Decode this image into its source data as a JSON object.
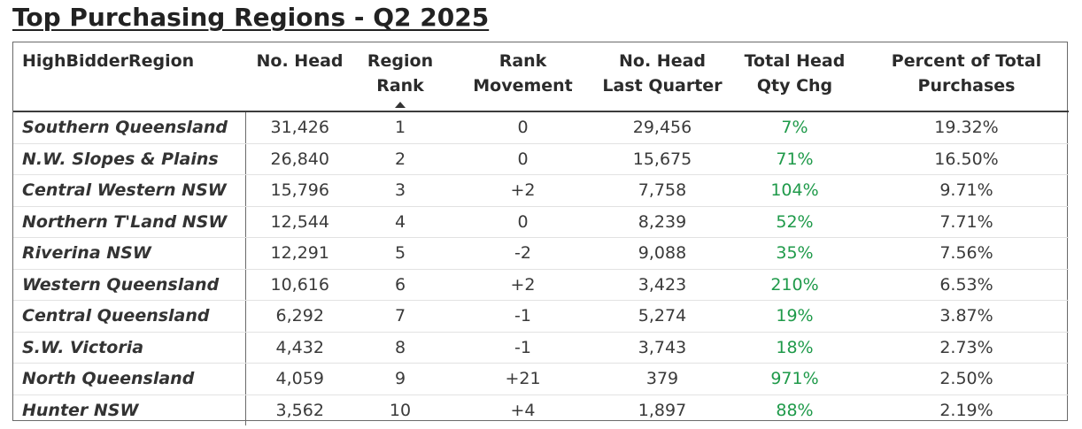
{
  "title": "Top Purchasing Regions - Q2 2025",
  "colors": {
    "positive_change": "#1f9a4a",
    "text": "#3a3a3a",
    "border": "#6a6a6a"
  },
  "table": {
    "headers": {
      "region": "HighBidderRegion",
      "no_head": "No. Head",
      "region_rank_1": "Region",
      "region_rank_2": "Rank",
      "rank_movement_1": "Rank",
      "rank_movement_2": "Movement",
      "last_quarter_1": "No. Head",
      "last_quarter_2": "Last Quarter",
      "qty_chg_1": "Total Head",
      "qty_chg_2": "Qty Chg",
      "percent_1": "Percent of Total",
      "percent_2": "Purchases"
    },
    "sort": {
      "column": "Region Rank",
      "direction": "ascending",
      "icon": "sort-ascending-icon"
    },
    "rows": [
      {
        "region": "Southern Queensland",
        "no_head": "31,426",
        "rank": "1",
        "movement": "0",
        "last_quarter": "29,456",
        "qty_chg": "7%",
        "percent": "19.32%"
      },
      {
        "region": "N.W. Slopes & Plains",
        "no_head": "26,840",
        "rank": "2",
        "movement": "0",
        "last_quarter": "15,675",
        "qty_chg": "71%",
        "percent": "16.50%"
      },
      {
        "region": "Central Western NSW",
        "no_head": "15,796",
        "rank": "3",
        "movement": "+2",
        "last_quarter": "7,758",
        "qty_chg": "104%",
        "percent": "9.71%"
      },
      {
        "region": "Northern T'Land NSW",
        "no_head": "12,544",
        "rank": "4",
        "movement": "0",
        "last_quarter": "8,239",
        "qty_chg": "52%",
        "percent": "7.71%"
      },
      {
        "region": "Riverina NSW",
        "no_head": "12,291",
        "rank": "5",
        "movement": "-2",
        "last_quarter": "9,088",
        "qty_chg": "35%",
        "percent": "7.56%"
      },
      {
        "region": "Western Queensland",
        "no_head": "10,616",
        "rank": "6",
        "movement": "+2",
        "last_quarter": "3,423",
        "qty_chg": "210%",
        "percent": "6.53%"
      },
      {
        "region": "Central Queensland",
        "no_head": "6,292",
        "rank": "7",
        "movement": "-1",
        "last_quarter": "5,274",
        "qty_chg": "19%",
        "percent": "3.87%"
      },
      {
        "region": "S.W. Victoria",
        "no_head": "4,432",
        "rank": "8",
        "movement": "-1",
        "last_quarter": "3,743",
        "qty_chg": "18%",
        "percent": "2.73%"
      },
      {
        "region": "North Queensland",
        "no_head": "4,059",
        "rank": "9",
        "movement": "+21",
        "last_quarter": "379",
        "qty_chg": "971%",
        "percent": "2.50%"
      },
      {
        "region": "Hunter NSW",
        "no_head": "3,562",
        "rank": "10",
        "movement": "+4",
        "last_quarter": "1,897",
        "qty_chg": "88%",
        "percent": "2.19%"
      }
    ]
  }
}
